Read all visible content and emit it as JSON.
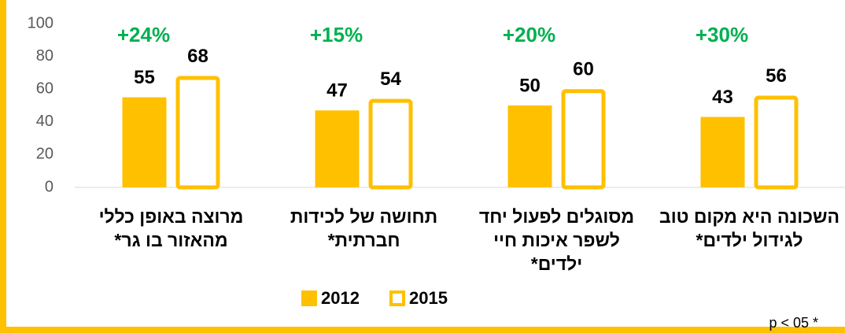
{
  "chart_data": {
    "type": "bar",
    "categories": [
      "מרוצה באופן כללי מהאזור בו גר*",
      "תחושה של לכידות חברתית*",
      "מסוגלים לפעול יחד לשפר איכות חיי ילדים*",
      "השכונה היא מקום טוב לגידול ילדים*"
    ],
    "series": [
      {
        "name": "2012",
        "color": "#FFC000",
        "fill": "solid",
        "values": [
          55,
          47,
          50,
          43
        ]
      },
      {
        "name": "2015",
        "color": "#FFC000",
        "fill": "hollow",
        "values": [
          68,
          54,
          60,
          56
        ]
      }
    ],
    "annotations": [
      "+24%",
      "+15%",
      "+20%",
      "+30%"
    ],
    "annotation_color": "#00B050",
    "footnote": "p < 05 *",
    "ylim": [
      0,
      100
    ],
    "yticks": [
      0,
      20,
      40,
      60,
      80,
      100
    ],
    "grid": false
  }
}
